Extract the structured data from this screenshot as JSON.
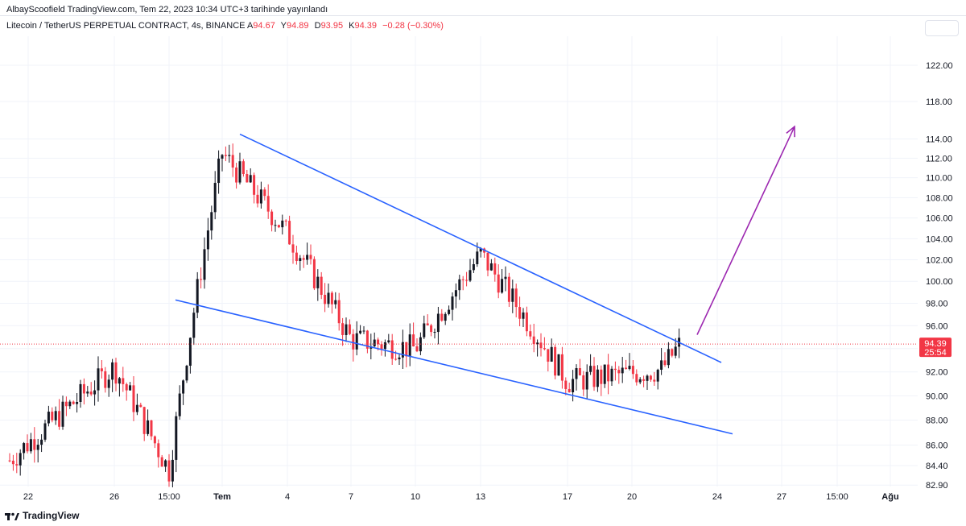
{
  "header": {
    "published": "AlbayScoofield TradingView.com, Tem 22, 2023 10:34 UTC+3 tarihinde yayınlandı",
    "symbol": "Litecoin / TetherUS PERPETUAL CONTRACT, 4s, BINANCE",
    "open_key": "A",
    "open": "94.67",
    "high_key": "Y",
    "high": "94.89",
    "low_key": "D",
    "low": "93.95",
    "close_key": "K",
    "close": "94.39",
    "change": "−0.28 (−0.30%)"
  },
  "price_tag": {
    "price": "94.39",
    "countdown": "25:54"
  },
  "footer": {
    "brand": "TradingView"
  },
  "colors": {
    "up": "#131722",
    "down": "#f23645",
    "trend": "#2962ff",
    "arrow": "#9c27b0",
    "grid": "#f0f3fa"
  },
  "chart_data": {
    "type": "candlestick",
    "yaxis": {
      "ticks": [
        82.9,
        84.4,
        86.0,
        88.0,
        90.0,
        92.0,
        94.0,
        96.0,
        98.0,
        100.0,
        102.0,
        104.0,
        106.0,
        108.0,
        110.0,
        112.0,
        114.0,
        118.0,
        122.0
      ],
      "scale": "log"
    },
    "xaxis": {
      "ticks": [
        "22",
        "26",
        "15:00",
        "Tem",
        "4",
        "7",
        "10",
        "13",
        "17",
        "20",
        "24",
        "27",
        "15:00",
        "Ağu"
      ]
    },
    "current_price": 94.39,
    "price_path": [
      [
        "22",
        84.8
      ],
      [
        "26",
        92.4
      ],
      [
        "15:00",
        84.0
      ],
      [
        "Tem",
        112.5
      ],
      [
        "4",
        104.5
      ],
      [
        "7",
        94.8
      ],
      [
        "10",
        94.0
      ],
      [
        "13",
        102.5
      ],
      [
        "17",
        91.2
      ],
      [
        "20",
        92.2
      ],
      [
        "22",
        94.39
      ]
    ],
    "trendlines": [
      {
        "name": "upper",
        "from": [
          "Tem",
          114.5
        ],
        "to": [
          "24",
          92.8
        ]
      },
      {
        "name": "lower",
        "from": [
          "15:00",
          98.3
        ],
        "to": [
          "27",
          86.9
        ]
      }
    ],
    "arrow": {
      "from": [
        "22",
        95.2
      ],
      "to": [
        "27",
        115.3
      ]
    }
  }
}
